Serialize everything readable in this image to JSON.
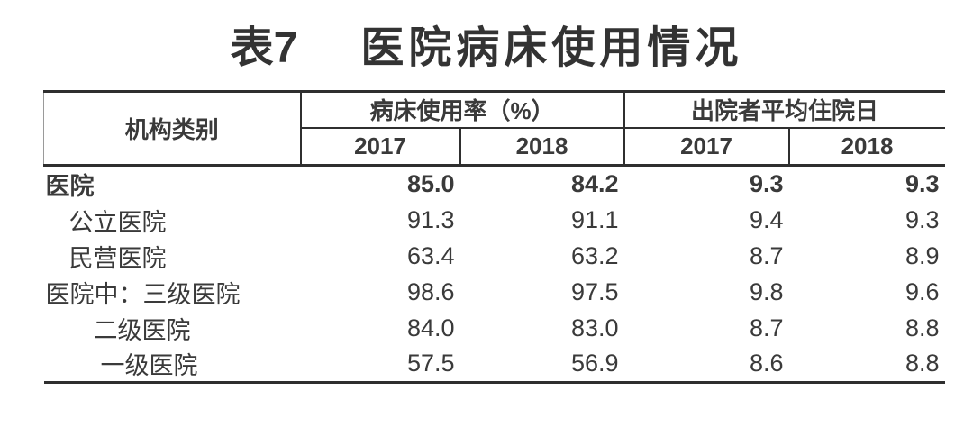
{
  "title": {
    "number": "表7",
    "text": "医院病床使用情况"
  },
  "table": {
    "header": {
      "institution_label": "机构类别",
      "groups": [
        {
          "label": "病床使用率（%）",
          "years": [
            "2017",
            "2018"
          ]
        },
        {
          "label": "出院者平均住院日",
          "years": [
            "2017",
            "2018"
          ]
        }
      ]
    },
    "rows": [
      {
        "label": "医院",
        "bold": true,
        "indent": 0,
        "values": [
          "85.0",
          "84.2",
          "9.3",
          "9.3"
        ]
      },
      {
        "label": "公立医院",
        "bold": false,
        "indent": 1,
        "values": [
          "91.3",
          "91.1",
          "9.4",
          "9.3"
        ]
      },
      {
        "label": "民营医院",
        "bold": false,
        "indent": 1,
        "values": [
          "63.4",
          "63.2",
          "8.7",
          "8.9"
        ]
      },
      {
        "label": "医院中：三级医院",
        "bold": false,
        "indent": 0,
        "values": [
          "98.6",
          "97.5",
          "9.8",
          "9.6"
        ]
      },
      {
        "label": "二级医院",
        "bold": false,
        "indent": 2,
        "values": [
          "84.0",
          "83.0",
          "8.7",
          "8.8"
        ]
      },
      {
        "label": "一级医院",
        "bold": false,
        "indent": 3,
        "values": [
          "57.5",
          "56.9",
          "8.6",
          "8.8"
        ]
      }
    ]
  },
  "colors": {
    "text": "#3a3a3a",
    "line": "#2f2f2f",
    "title": "#333333",
    "faint_line": "#9a9a9a",
    "bg": "#ffffff"
  },
  "chart_data": {
    "type": "table",
    "title": "表7 医院病床使用情况",
    "column_groups": [
      "病床使用率（%）",
      "出院者平均住院日"
    ],
    "columns": [
      "机构类别",
      "病床使用率（%） 2017",
      "病床使用率（%） 2018",
      "出院者平均住院日 2017",
      "出院者平均住院日 2018"
    ],
    "rows": [
      [
        "医院",
        85.0,
        84.2,
        9.3,
        9.3
      ],
      [
        "公立医院",
        91.3,
        91.1,
        9.4,
        9.3
      ],
      [
        "民营医院",
        63.4,
        63.2,
        8.7,
        8.9
      ],
      [
        "医院中：三级医院",
        98.6,
        97.5,
        9.8,
        9.6
      ],
      [
        "二级医院",
        84.0,
        83.0,
        8.7,
        8.8
      ],
      [
        "一级医院",
        57.5,
        56.9,
        8.6,
        8.8
      ]
    ]
  }
}
